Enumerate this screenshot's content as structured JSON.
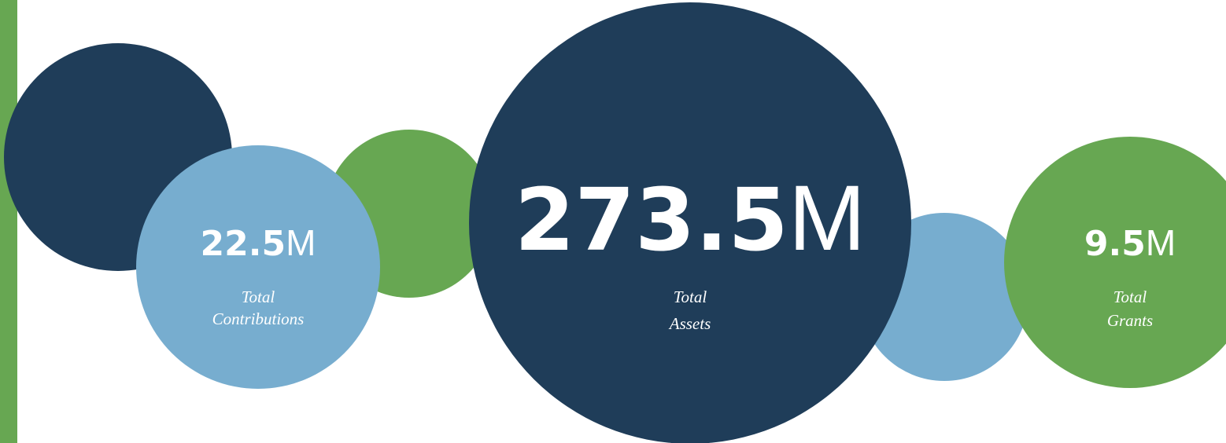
{
  "stats": [
    {
      "number": "22.5",
      "unit": "M",
      "label": [
        "Total",
        "Contributions"
      ]
    },
    {
      "number": "273.5",
      "unit": "M",
      "label": [
        "Total",
        "Assets"
      ]
    },
    {
      "number": "9.5",
      "unit": "M",
      "label": [
        "Total",
        "Grants"
      ]
    }
  ]
}
